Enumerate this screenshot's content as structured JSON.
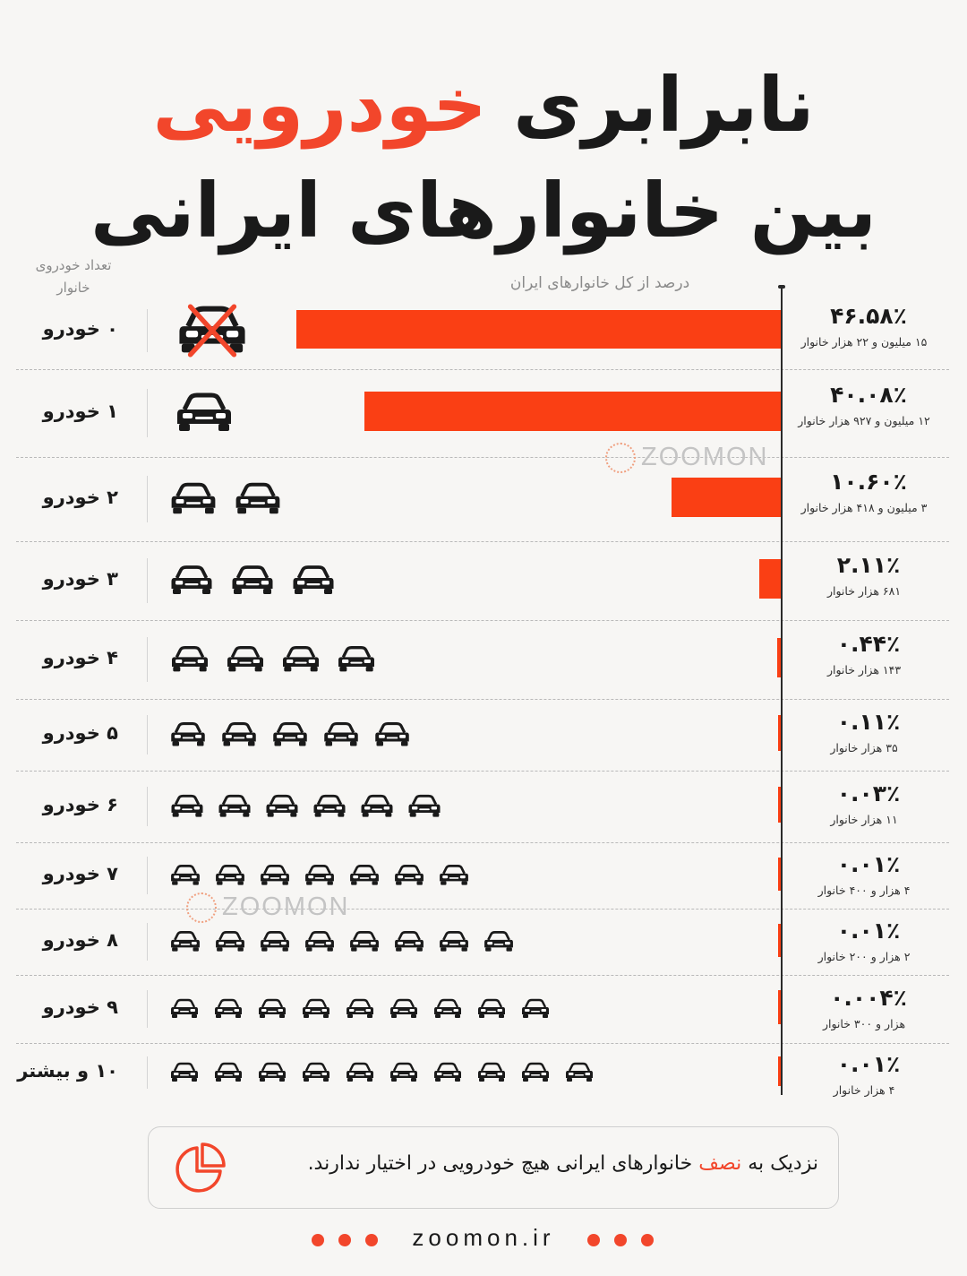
{
  "header": {
    "title_prefix": "نابرابری",
    "title_accent": "خودرویی",
    "title_line2": "بین خانوارهای ایرانی"
  },
  "columns": {
    "count_header": "تعداد خودروی خانوار",
    "pct_header": "درصد از کل خانوارهای ایران"
  },
  "watermark": "ZOOMON",
  "chart_data": {
    "type": "bar",
    "orientation": "horizontal",
    "categories": [
      "۰ خودرو",
      "۱ خودرو",
      "۲ خودرو",
      "۳ خودرو",
      "۴ خودرو",
      "۵ خودرو",
      "۶ خودرو",
      "۷ خودرو",
      "۸ خودرو",
      "۹ خودرو",
      "۱۰ و بیشتر"
    ],
    "values": [
      46.58,
      40.08,
      10.6,
      2.11,
      0.44,
      0.11,
      0.03,
      0.01,
      0.01,
      0.004,
      0.01
    ],
    "value_labels": [
      "۴۶.۵۸٪",
      "۴۰.۰۸٪",
      "۱۰.۶۰٪",
      "۲.۱۱٪",
      "۰.۴۴٪",
      "۰.۱۱٪",
      "۰.۰۳٪",
      "۰.۰۱٪",
      "۰.۰۱٪",
      "۰.۰۰۴٪",
      "۰.۰۱٪"
    ],
    "household_counts": [
      "۱۵ میلیون و ۲۲ هزار خانوار",
      "۱۲ میلیون و ۹۲۷ هزار خانوار",
      "۳ میلیون و ۴۱۸ هزار خانوار",
      "۶۸۱ هزار خانوار",
      "۱۴۳ هزار خانوار",
      "۳۵ هزار خانوار",
      "۱۱ هزار خانوار",
      "۴ هزار و ۴۰۰ خانوار",
      "۲ هزار و ۲۰۰ خانوار",
      "هزار و ۳۰۰ خانوار",
      "۴ هزار خانوار"
    ],
    "car_icons": [
      1,
      1,
      2,
      3,
      4,
      5,
      6,
      7,
      8,
      9,
      10
    ],
    "bar_color": "#fa3f14",
    "grid": false
  },
  "note": {
    "prefix": "نزدیک به ",
    "highlight": "نصف",
    "suffix": " خانوارهای ایرانی هیچ خودرویی در اختیار ندارند."
  },
  "footer": {
    "url": "zoomon.ir"
  },
  "colors": {
    "accent": "#f2462b",
    "text": "#1a1a1a",
    "background": "#f7f6f4"
  }
}
